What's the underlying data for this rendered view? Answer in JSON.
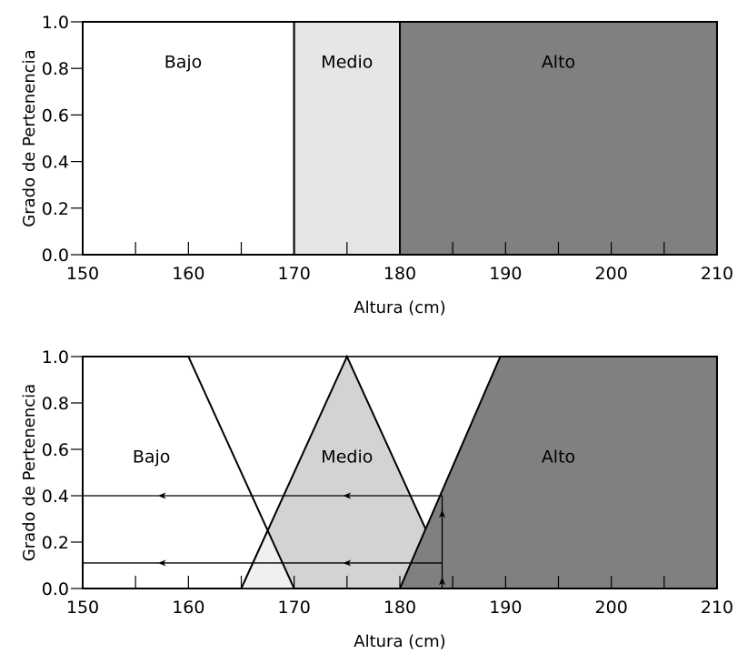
{
  "chart_data": [
    {
      "type": "area",
      "subtype": "crisp-sets",
      "xlabel": "Altura (cm)",
      "ylabel": "Grado de Pertenencia",
      "xlim": [
        150,
        210
      ],
      "ylim": [
        0.0,
        1.0
      ],
      "x_ticks": [
        "150",
        "160",
        "170",
        "180",
        "190",
        "200",
        "210"
      ],
      "y_ticks": [
        "0.0",
        "0.2",
        "0.4",
        "0.6",
        "0.8",
        "1.0"
      ],
      "grid": false,
      "series": [
        {
          "name": "Bajo",
          "fill": "#ffffff",
          "label_pos": [
            159.5,
            0.83
          ],
          "x": [
            150,
            150,
            170,
            170
          ],
          "y": [
            0,
            1,
            1,
            0
          ]
        },
        {
          "name": "Medio",
          "fill": "#e6e6e6",
          "label_pos": [
            175,
            0.83
          ],
          "x": [
            170,
            170,
            180,
            180
          ],
          "y": [
            0,
            1,
            1,
            0
          ]
        },
        {
          "name": "Alto",
          "fill": "#808080",
          "label_pos": [
            195,
            0.83
          ],
          "x": [
            180,
            180,
            210,
            210
          ],
          "y": [
            0,
            1,
            1,
            0
          ]
        }
      ]
    },
    {
      "type": "area",
      "subtype": "fuzzy-sets",
      "xlabel": "Altura (cm)",
      "ylabel": "Grado de Pertenencia",
      "xlim": [
        150,
        210
      ],
      "ylim": [
        0.0,
        1.0
      ],
      "x_ticks": [
        "150",
        "160",
        "170",
        "180",
        "190",
        "200",
        "210"
      ],
      "y_ticks": [
        "0.0",
        "0.2",
        "0.4",
        "0.6",
        "0.8",
        "1.0"
      ],
      "grid": false,
      "series": [
        {
          "name": "Bajo",
          "fill": "#ffffff",
          "label_pos": [
            156.5,
            0.57
          ],
          "x": [
            150,
            150,
            160,
            170
          ],
          "y": [
            0,
            1,
            1,
            0
          ]
        },
        {
          "name": "Medio",
          "fill": "#d3d3d3",
          "label_pos": [
            175,
            0.57
          ],
          "x": [
            165,
            175,
            185
          ],
          "y": [
            0,
            1,
            0
          ]
        },
        {
          "name": "Alto",
          "fill": "#808080",
          "label_pos": [
            195,
            0.57
          ],
          "x": [
            180,
            189.5,
            210,
            210
          ],
          "y": [
            0,
            1,
            1,
            0
          ]
        }
      ],
      "overlap_fill": "#f0f0f0",
      "annotations": {
        "input_x": 184,
        "levels": [
          0.4,
          0.11
        ],
        "arrow_left_x": [
          157.5,
          175
        ]
      }
    }
  ]
}
